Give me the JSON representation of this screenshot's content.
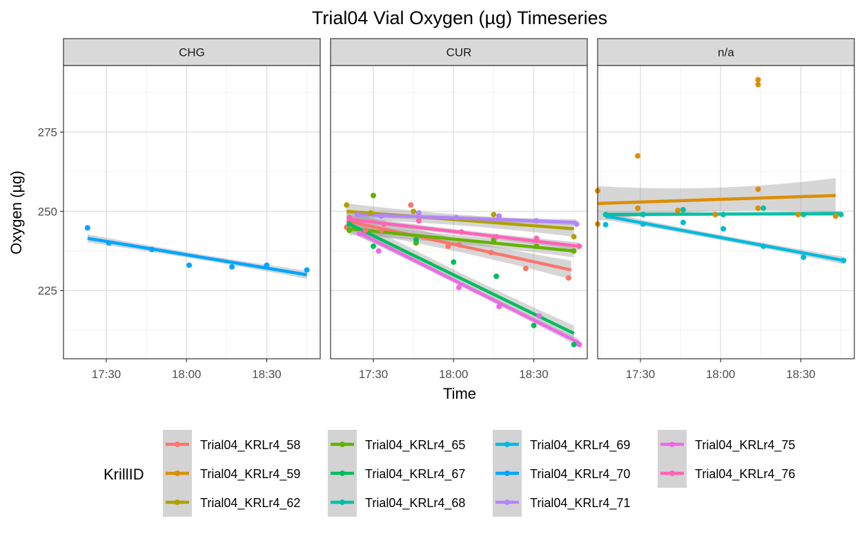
{
  "chart_data": {
    "type": "scatter",
    "title": "Trial04 Vial Oxygen (µg) Timeseries",
    "xlabel": "Time",
    "ylabel": "Oxygen (µg)",
    "xlim": [
      "17:14",
      "18:50"
    ],
    "ylim": [
      203.5,
      296
    ],
    "x_ticks": [
      "17:30",
      "18:00",
      "18:30"
    ],
    "y_ticks": [
      225,
      250,
      275
    ],
    "grid": true,
    "smooth": "linear fit with confidence band",
    "legend": {
      "title": "KrillID",
      "position": "bottom",
      "entries": [
        "Trial04_KRLr4_58",
        "Trial04_KRLr4_59",
        "Trial04_KRLr4_62",
        "Trial04_KRLr4_65",
        "Trial04_KRLr4_67",
        "Trial04_KRLr4_68",
        "Trial04_KRLr4_69",
        "Trial04_KRLr4_70",
        "Trial04_KRLr4_71",
        "Trial04_KRLr4_75",
        "Trial04_KRLr4_76"
      ]
    },
    "colors": {
      "Trial04_KRLr4_58": "#F8766D",
      "Trial04_KRLr4_59": "#DB8E00",
      "Trial04_KRLr4_62": "#AEA200",
      "Trial04_KRLr4_65": "#64B200",
      "Trial04_KRLr4_67": "#00BD5C",
      "Trial04_KRLr4_68": "#00C1A7",
      "Trial04_KRLr4_69": "#00BADE",
      "Trial04_KRLr4_70": "#00A6FF",
      "Trial04_KRLr4_71": "#B385FF",
      "Trial04_KRLr4_75": "#EF67EB",
      "Trial04_KRLr4_76": "#FF63B6"
    },
    "facets": [
      {
        "name": "CHG",
        "series": [
          {
            "name": "Trial04_KRLr4_70",
            "points": [
              [
                "17:23",
                244.8
              ],
              [
                "17:31",
                240
              ],
              [
                "17:47",
                238
              ],
              [
                "18:01",
                233
              ],
              [
                "18:17",
                232.5
              ],
              [
                "18:30",
                233
              ],
              [
                "18:45",
                231.5
              ]
            ],
            "fit": [
              [
                "17:23",
                241.5
              ],
              [
                "18:45",
                230
              ]
            ],
            "band": 1.3
          }
        ]
      },
      {
        "name": "CUR",
        "series": [
          {
            "name": "Trial04_KRLr4_58",
            "points": [
              [
                "17:20",
                245
              ],
              [
                "17:27",
                244
              ],
              [
                "17:33",
                244
              ],
              [
                "17:44",
                252
              ],
              [
                "17:58",
                239
              ],
              [
                "18:02",
                239.5
              ],
              [
                "18:14",
                237
              ],
              [
                "18:27",
                232
              ],
              [
                "18:43",
                229
              ]
            ],
            "fit": [
              [
                "17:20",
                247
              ],
              [
                "18:44",
                231.5
              ]
            ],
            "band": 3
          },
          {
            "name": "Trial04_KRLr4_62",
            "points": [
              [
                "17:20",
                252
              ],
              [
                "17:29",
                249.5
              ],
              [
                "17:45",
                250
              ],
              [
                "18:15",
                249
              ],
              [
                "18:45",
                242
              ]
            ],
            "fit": [
              [
                "17:20",
                250
              ],
              [
                "18:45",
                244.5
              ]
            ],
            "band": 2.5
          },
          {
            "name": "Trial04_KRLr4_65",
            "points": [
              [
                "17:21",
                244
              ],
              [
                "17:30",
                255
              ],
              [
                "17:46",
                240
              ],
              [
                "18:15",
                241
              ],
              [
                "18:31",
                239
              ],
              [
                "18:45",
                237.5
              ]
            ],
            "fit": [
              [
                "17:21",
                244.5
              ],
              [
                "18:45",
                237.5
              ]
            ],
            "band": 2
          },
          {
            "name": "Trial04_KRLr4_67",
            "points": [
              [
                "17:21",
                246
              ],
              [
                "17:30",
                239
              ],
              [
                "17:46",
                241
              ],
              [
                "18:00",
                234
              ],
              [
                "18:16",
                229.5
              ],
              [
                "18:30",
                214
              ],
              [
                "18:45",
                208
              ]
            ],
            "fit": [
              [
                "17:21",
                246
              ],
              [
                "18:45",
                211.5
              ]
            ],
            "band": 2.5
          },
          {
            "name": "Trial04_KRLr4_71",
            "points": [
              [
                "17:24",
                249
              ],
              [
                "17:33",
                248.5
              ],
              [
                "17:47",
                249.5
              ],
              [
                "18:01",
                248
              ],
              [
                "18:17",
                248.5
              ],
              [
                "18:31",
                247
              ],
              [
                "18:46",
                246
              ]
            ],
            "fit": [
              [
                "17:24",
                249
              ],
              [
                "18:46",
                246.5
              ]
            ],
            "band": 1
          },
          {
            "name": "Trial04_KRLr4_75",
            "points": [
              [
                "17:25",
                243
              ],
              [
                "17:32",
                237.5
              ],
              [
                "18:02",
                226
              ],
              [
                "18:17",
                220
              ],
              [
                "18:32",
                217
              ],
              [
                "18:47",
                208
              ]
            ],
            "fit": [
              [
                "17:24",
                243.5
              ],
              [
                "18:47",
                208.5
              ]
            ],
            "band": 1.2
          },
          {
            "name": "Trial04_KRLr4_76",
            "points": [
              [
                "17:21",
                248
              ],
              [
                "17:34",
                246
              ],
              [
                "17:47",
                247
              ],
              [
                "18:03",
                243.5
              ],
              [
                "18:16",
                242
              ],
              [
                "18:31",
                241.5
              ],
              [
                "18:47",
                239
              ]
            ],
            "fit": [
              [
                "17:21",
                247.5
              ],
              [
                "18:47",
                239
              ]
            ],
            "band": 1.2
          }
        ]
      },
      {
        "name": "n/a",
        "series": [
          {
            "name": "Trial04_KRLr4_59",
            "points": [
              [
                "17:14",
                256.5
              ],
              [
                "17:14",
                246
              ],
              [
                "17:29",
                267.5
              ],
              [
                "17:29",
                251
              ],
              [
                "17:44",
                250.3
              ],
              [
                "17:58",
                249
              ],
              [
                "18:14",
                291.5
              ],
              [
                "18:14",
                290
              ],
              [
                "18:14",
                257
              ],
              [
                "18:14",
                251
              ],
              [
                "18:29",
                249
              ],
              [
                "18:43",
                248.5
              ]
            ],
            "fit": [
              [
                "17:14",
                252.5
              ],
              [
                "18:43",
                255
              ]
            ],
            "band": 5.5
          },
          {
            "name": "Trial04_KRLr4_68",
            "points": [
              [
                "17:17",
                249
              ],
              [
                "17:31",
                249
              ],
              [
                "17:46",
                250.5
              ],
              [
                "18:01",
                249
              ],
              [
                "18:16",
                251
              ],
              [
                "18:31",
                249
              ],
              [
                "18:45",
                249
              ]
            ],
            "fit": [
              [
                "17:17",
                249
              ],
              [
                "18:45",
                249.3
              ]
            ],
            "band": 0.8
          },
          {
            "name": "Trial04_KRLr4_69",
            "points": [
              [
                "17:17",
                245.8
              ],
              [
                "17:31",
                246
              ],
              [
                "17:46",
                246.5
              ],
              [
                "18:01",
                244.5
              ],
              [
                "18:16",
                239
              ],
              [
                "18:31",
                235.5
              ],
              [
                "18:46",
                234.5
              ]
            ],
            "fit": [
              [
                "17:17",
                248.5
              ],
              [
                "18:46",
                234.5
              ]
            ],
            "band": 1.2
          }
        ]
      }
    ]
  }
}
